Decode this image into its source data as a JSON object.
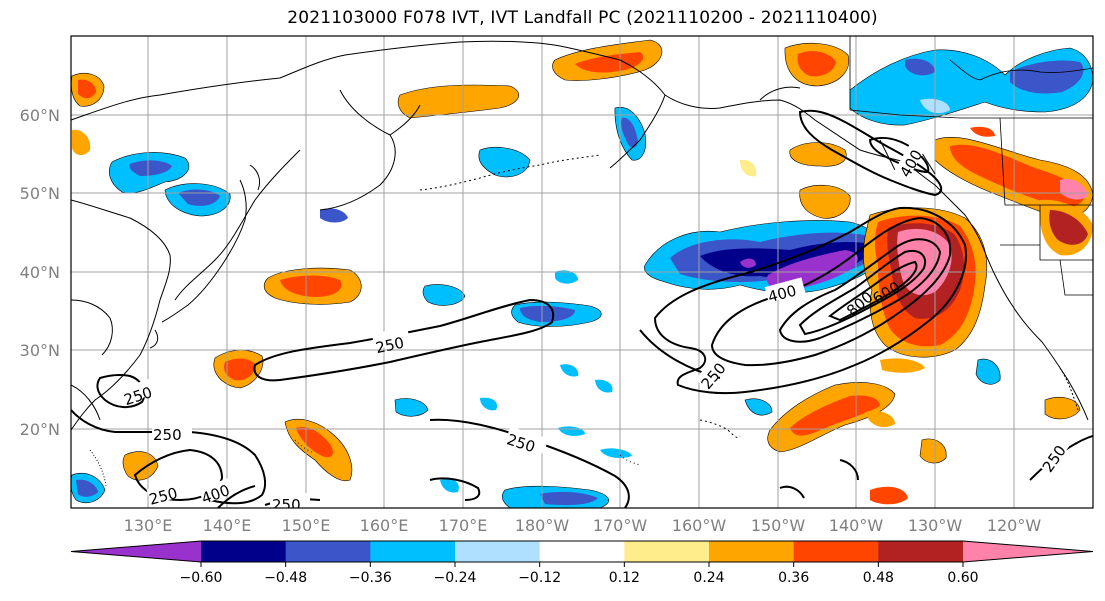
{
  "title": "2021103000 F078 IVT, IVT Landfall PC (2021110200 - 2021110400)",
  "map": {
    "lat_labels": [
      "60°N",
      "50°N",
      "40°N",
      "30°N",
      "20°N"
    ],
    "lon_labels": [
      "130°E",
      "140°E",
      "150°E",
      "160°E",
      "170°E",
      "180°W",
      "170°W",
      "160°W",
      "150°W",
      "140°W",
      "130°W",
      "120°W"
    ],
    "contour_labels": [
      "250",
      "250",
      "250",
      "250",
      "250",
      "250",
      "250",
      "400",
      "400",
      "400",
      "600",
      "800",
      "250"
    ]
  },
  "colorbar": {
    "colors": [
      "#9932cc",
      "#00008b",
      "#3a56c8",
      "#00bfff",
      "#b0e0ff",
      "#ffffff",
      "#ffec8b",
      "#ffa500",
      "#ff4500",
      "#b22222",
      "#ff82ab"
    ],
    "tick_labels": [
      "−0.60",
      "−0.48",
      "−0.36",
      "−0.24",
      "−0.12",
      "0.12",
      "0.24",
      "0.36",
      "0.48",
      "0.60"
    ]
  }
}
